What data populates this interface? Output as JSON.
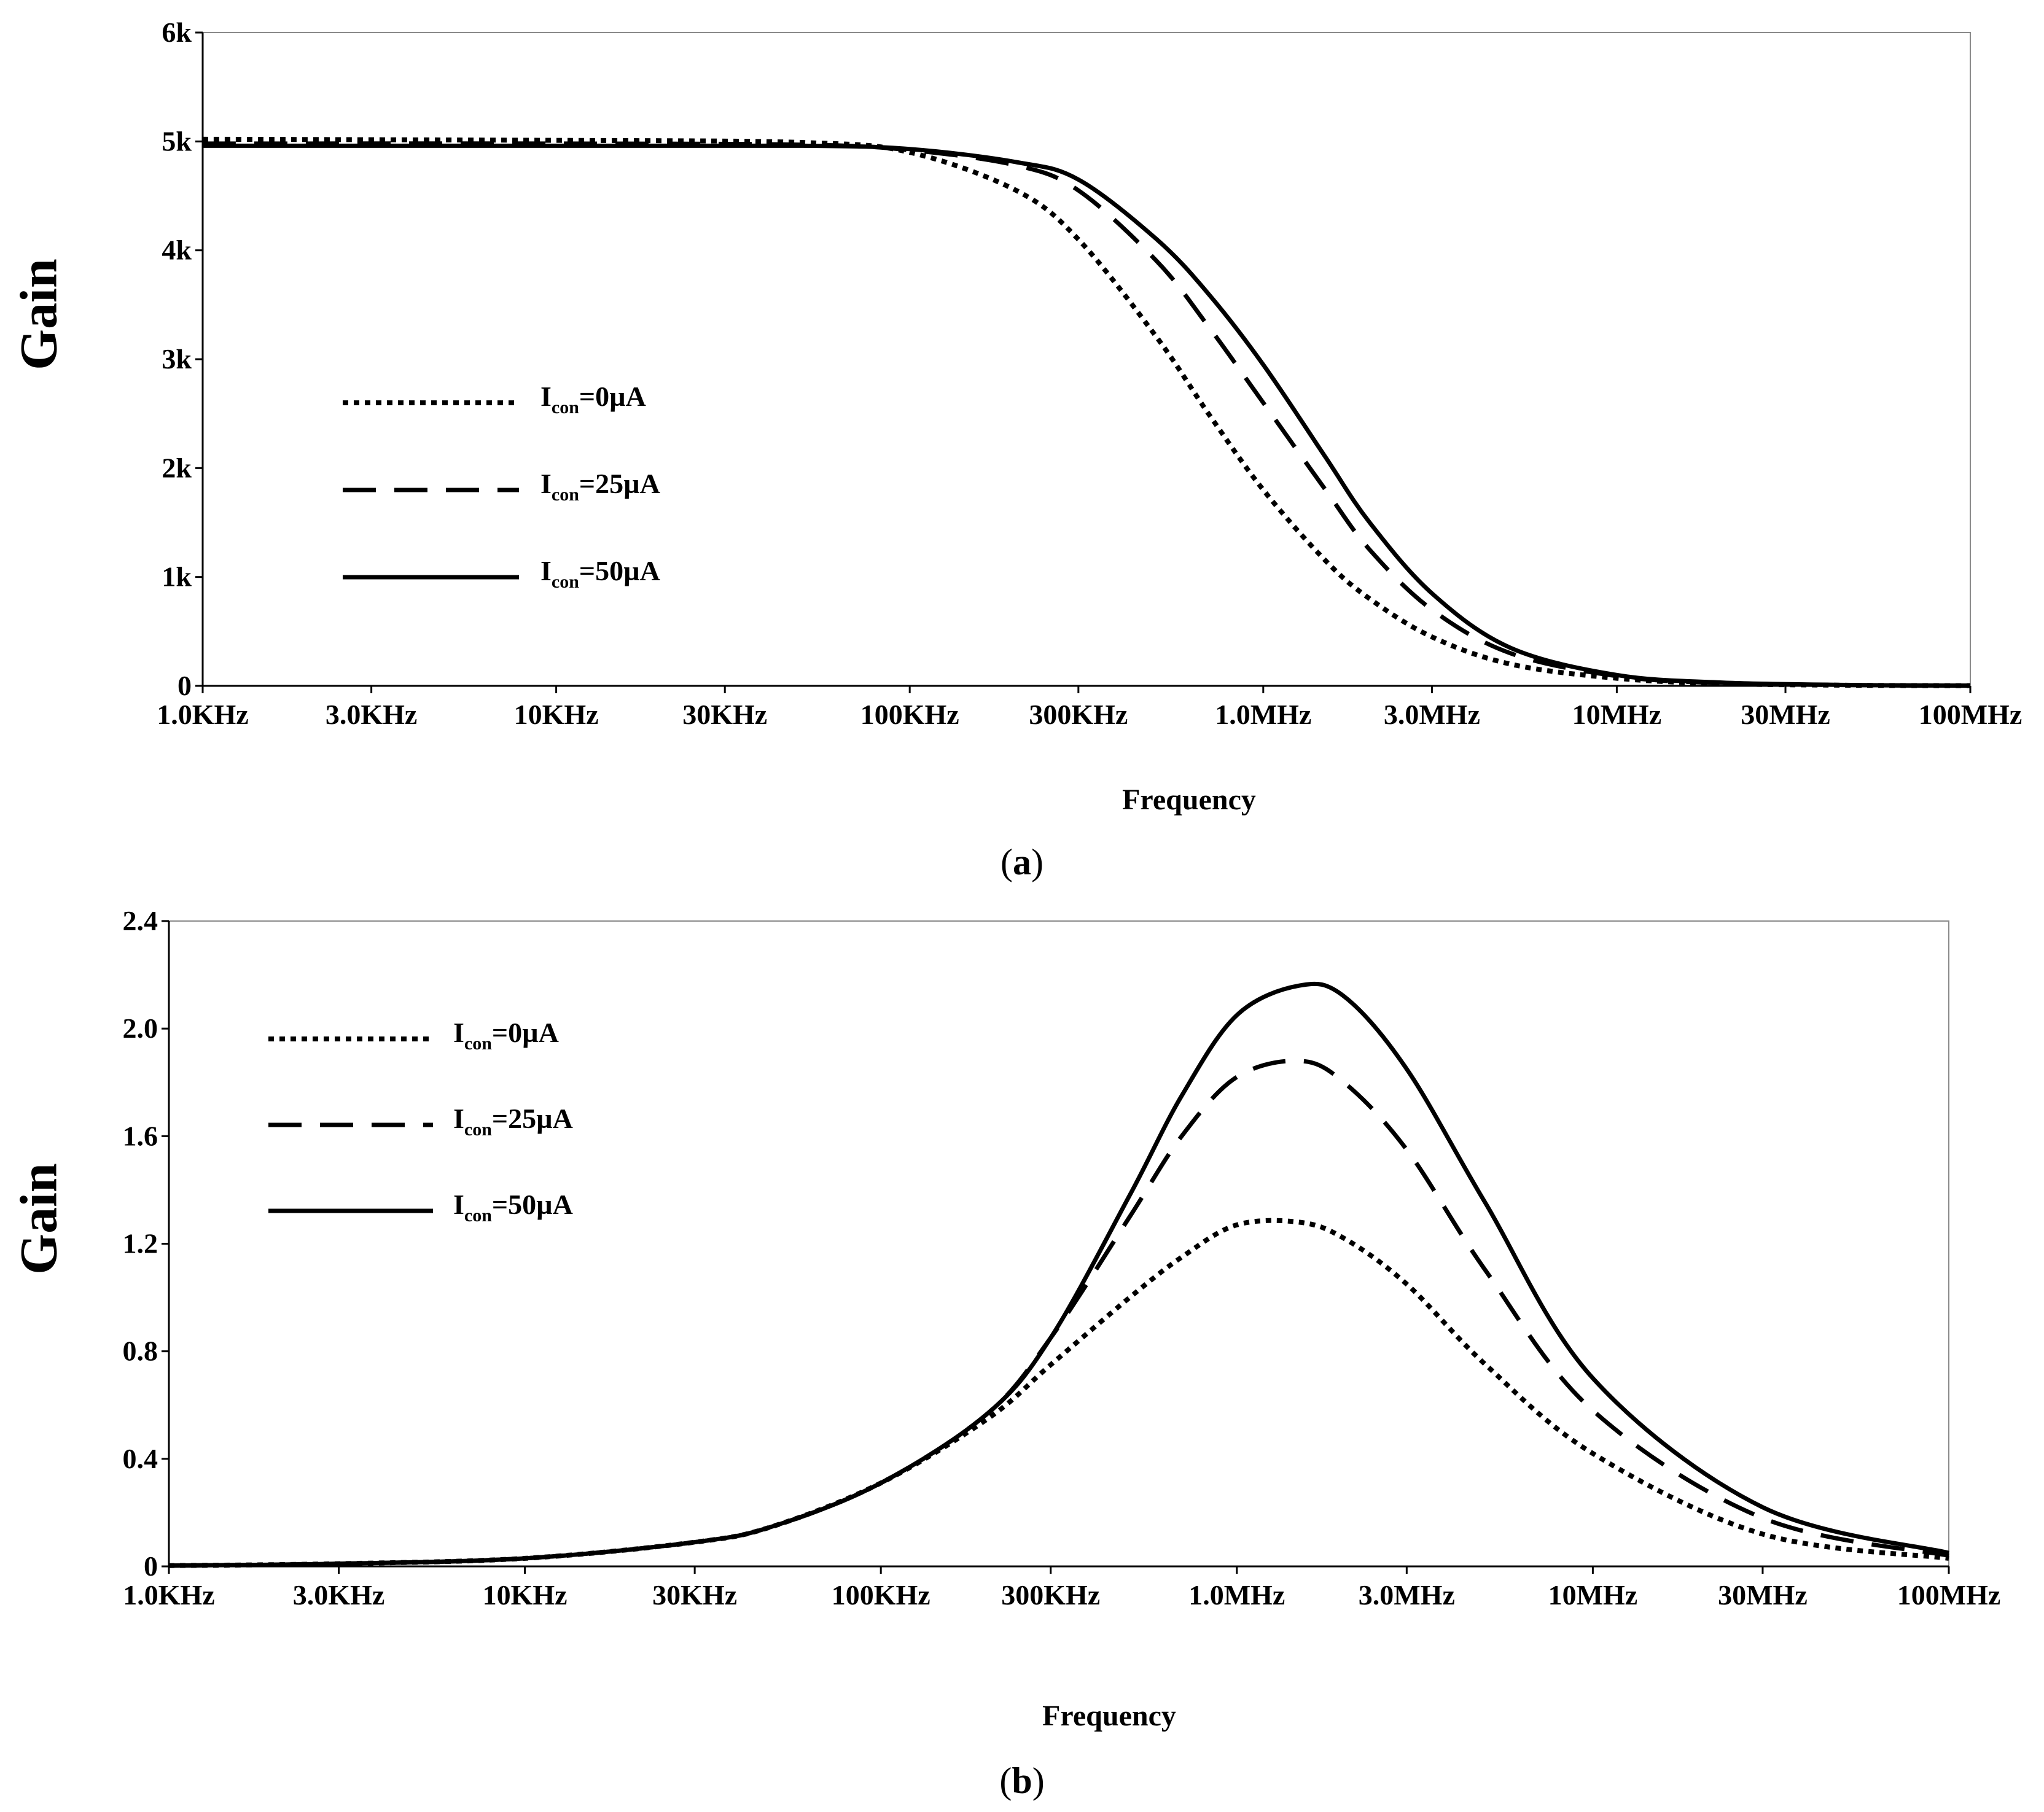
{
  "chart_data": [
    {
      "panel": "(a)",
      "caption_letter": "a",
      "type": "line",
      "x_scale": "log",
      "xlabel": "Frequency",
      "ylabel": "Gain",
      "xlim_hz": [
        1000,
        100000000
      ],
      "ylim": [
        0,
        6000
      ],
      "x_ticks": [
        {
          "label": "1.0KHz",
          "value": 1000
        },
        {
          "label": "3.0KHz",
          "value": 3000
        },
        {
          "label": "10KHz",
          "value": 10000
        },
        {
          "label": "30KHz",
          "value": 30000
        },
        {
          "label": "100KHz",
          "value": 100000
        },
        {
          "label": "300KHz",
          "value": 300000
        },
        {
          "label": "1.0MHz",
          "value": 1000000
        },
        {
          "label": "3.0MHz",
          "value": 3000000
        },
        {
          "label": "10MHz",
          "value": 10000000
        },
        {
          "label": "30MHz",
          "value": 30000000
        },
        {
          "label": "100MHz",
          "value": 100000000
        }
      ],
      "y_ticks": [
        {
          "label": "0",
          "value": 0
        },
        {
          "label": "1k",
          "value": 1000
        },
        {
          "label": "2k",
          "value": 2000
        },
        {
          "label": "3k",
          "value": 3000
        },
        {
          "label": "4k",
          "value": 4000
        },
        {
          "label": "5k",
          "value": 5000
        },
        {
          "label": "6k",
          "value": 6000
        }
      ],
      "legend_position": "left-middle",
      "x": [
        1000,
        10000,
        50000,
        100000,
        200000,
        300000,
        500000,
        700000,
        1000000,
        1500000,
        2000000,
        3000000,
        5000000,
        10000000,
        20000000,
        50000000,
        100000000
      ],
      "series": [
        {
          "name": "Icon=0µA",
          "label_main": "I",
          "label_sub": "con",
          "label_rest": "=0µA",
          "style": "dotted",
          "values": [
            5020,
            5010,
            4990,
            4900,
            4550,
            4100,
            3200,
            2500,
            1800,
            1150,
            800,
            450,
            200,
            70,
            20,
            5,
            2
          ]
        },
        {
          "name": "Icon=25µA",
          "label_main": "I",
          "label_sub": "con",
          "label_rest": "=25µA",
          "style": "dashed",
          "values": [
            4980,
            4980,
            4970,
            4920,
            4780,
            4550,
            3900,
            3300,
            2600,
            1800,
            1250,
            700,
            300,
            90,
            25,
            6,
            2
          ]
        },
        {
          "name": "Icon=50µA",
          "label_main": "I",
          "label_sub": "con",
          "label_rest": "=50µA",
          "style": "solid",
          "values": [
            4960,
            4960,
            4960,
            4930,
            4810,
            4650,
            4100,
            3600,
            2950,
            2100,
            1500,
            850,
            350,
            100,
            30,
            7,
            2
          ]
        }
      ]
    },
    {
      "panel": "(b)",
      "caption_letter": "b",
      "type": "line",
      "x_scale": "log",
      "xlabel": "Frequency",
      "ylabel": "Gain",
      "xlim_hz": [
        1000,
        100000000
      ],
      "ylim": [
        0,
        2.4
      ],
      "x_ticks": [
        {
          "label": "1.0KHz",
          "value": 1000
        },
        {
          "label": "3.0KHz",
          "value": 3000
        },
        {
          "label": "10KHz",
          "value": 10000
        },
        {
          "label": "30KHz",
          "value": 30000
        },
        {
          "label": "100KHz",
          "value": 100000
        },
        {
          "label": "300KHz",
          "value": 300000
        },
        {
          "label": "1.0MHz",
          "value": 1000000
        },
        {
          "label": "3.0MHz",
          "value": 3000000
        },
        {
          "label": "10MHz",
          "value": 10000000
        },
        {
          "label": "30MHz",
          "value": 30000000
        },
        {
          "label": "100MHz",
          "value": 100000000
        }
      ],
      "y_ticks": [
        {
          "label": "0",
          "value": 0
        },
        {
          "label": "0.4",
          "value": 0.4
        },
        {
          "label": "0.8",
          "value": 0.8
        },
        {
          "label": "1.2",
          "value": 1.2
        },
        {
          "label": "1.6",
          "value": 1.6
        },
        {
          "label": "2.0",
          "value": 2.0
        },
        {
          "label": "2.4",
          "value": 2.4
        }
      ],
      "legend_position": "top-left",
      "x": [
        1000,
        3000,
        10000,
        30000,
        50000,
        100000,
        200000,
        300000,
        500000,
        700000,
        1000000,
        1500000,
        2000000,
        3000000,
        5000000,
        10000000,
        30000000,
        100000000
      ],
      "series": [
        {
          "name": "Icon=0µA",
          "label_main": "I",
          "label_sub": "con",
          "label_rest": "=0µA",
          "style": "dotted",
          "values": [
            0.003,
            0.01,
            0.03,
            0.09,
            0.15,
            0.31,
            0.55,
            0.75,
            1.0,
            1.15,
            1.27,
            1.28,
            1.22,
            1.05,
            0.75,
            0.42,
            0.12,
            0.03
          ]
        },
        {
          "name": "Icon=25µA",
          "label_main": "I",
          "label_sub": "con",
          "label_rest": "=25µA",
          "style": "dashed",
          "values": [
            0.003,
            0.01,
            0.03,
            0.09,
            0.15,
            0.31,
            0.57,
            0.85,
            1.3,
            1.6,
            1.82,
            1.88,
            1.8,
            1.55,
            1.1,
            0.58,
            0.18,
            0.04
          ]
        },
        {
          "name": "Icon=50µA",
          "label_main": "I",
          "label_sub": "con",
          "label_rest": "=50µA",
          "style": "solid",
          "values": [
            0.003,
            0.01,
            0.03,
            0.09,
            0.15,
            0.31,
            0.57,
            0.85,
            1.38,
            1.75,
            2.05,
            2.16,
            2.12,
            1.85,
            1.35,
            0.7,
            0.22,
            0.05
          ]
        }
      ]
    }
  ]
}
